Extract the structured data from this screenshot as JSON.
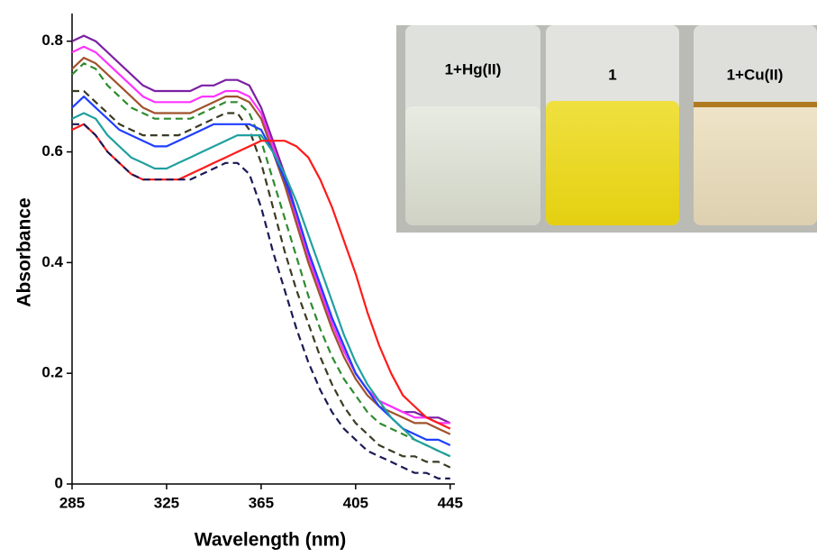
{
  "chart_data": {
    "type": "line",
    "x_label": "Wavelength (nm)",
    "y_label": "Absorbance",
    "x": [
      285,
      290,
      295,
      300,
      305,
      310,
      315,
      320,
      325,
      330,
      335,
      340,
      345,
      350,
      355,
      360,
      365,
      370,
      375,
      380,
      385,
      390,
      395,
      400,
      405,
      410,
      415,
      420,
      425,
      430,
      435,
      440,
      445
    ],
    "series": [
      {
        "color": "#7b1fa2",
        "dashed": false,
        "values": [
          0.8,
          0.81,
          0.8,
          0.78,
          0.76,
          0.74,
          0.72,
          0.71,
          0.71,
          0.71,
          0.71,
          0.72,
          0.72,
          0.73,
          0.73,
          0.72,
          0.68,
          0.62,
          0.56,
          0.49,
          0.42,
          0.36,
          0.3,
          0.25,
          0.2,
          0.17,
          0.15,
          0.14,
          0.13,
          0.13,
          0.12,
          0.12,
          0.11
        ]
      },
      {
        "color": "#ff33ff",
        "dashed": false,
        "values": [
          0.78,
          0.79,
          0.78,
          0.76,
          0.74,
          0.72,
          0.7,
          0.69,
          0.69,
          0.69,
          0.69,
          0.7,
          0.7,
          0.71,
          0.71,
          0.7,
          0.67,
          0.61,
          0.55,
          0.48,
          0.41,
          0.35,
          0.29,
          0.24,
          0.2,
          0.17,
          0.15,
          0.14,
          0.13,
          0.12,
          0.12,
          0.11,
          0.11
        ]
      },
      {
        "color": "#a0522d",
        "dashed": false,
        "values": [
          0.75,
          0.77,
          0.76,
          0.74,
          0.72,
          0.7,
          0.68,
          0.67,
          0.67,
          0.67,
          0.67,
          0.68,
          0.69,
          0.7,
          0.7,
          0.69,
          0.66,
          0.6,
          0.54,
          0.47,
          0.4,
          0.34,
          0.28,
          0.23,
          0.19,
          0.16,
          0.14,
          0.13,
          0.12,
          0.11,
          0.11,
          0.1,
          0.09
        ]
      },
      {
        "color": "#2e8b2e",
        "dashed": true,
        "values": [
          0.74,
          0.76,
          0.75,
          0.72,
          0.7,
          0.68,
          0.67,
          0.66,
          0.66,
          0.66,
          0.66,
          0.67,
          0.68,
          0.69,
          0.69,
          0.67,
          0.62,
          0.55,
          0.48,
          0.41,
          0.34,
          0.28,
          0.23,
          0.19,
          0.16,
          0.13,
          0.11,
          0.1,
          0.09,
          0.08,
          0.07,
          0.06,
          0.05
        ]
      },
      {
        "color": "#3b3b22",
        "dashed": true,
        "values": [
          0.71,
          0.71,
          0.69,
          0.67,
          0.65,
          0.64,
          0.63,
          0.63,
          0.63,
          0.63,
          0.64,
          0.65,
          0.66,
          0.67,
          0.67,
          0.64,
          0.58,
          0.5,
          0.42,
          0.35,
          0.29,
          0.23,
          0.18,
          0.14,
          0.11,
          0.09,
          0.07,
          0.06,
          0.05,
          0.05,
          0.04,
          0.04,
          0.03
        ]
      },
      {
        "color": "#1f3fff",
        "dashed": false,
        "values": [
          0.68,
          0.7,
          0.68,
          0.66,
          0.64,
          0.63,
          0.62,
          0.61,
          0.61,
          0.62,
          0.63,
          0.64,
          0.65,
          0.65,
          0.65,
          0.65,
          0.64,
          0.6,
          0.55,
          0.49,
          0.42,
          0.36,
          0.3,
          0.25,
          0.2,
          0.17,
          0.14,
          0.12,
          0.1,
          0.09,
          0.08,
          0.08,
          0.07
        ]
      },
      {
        "color": "#20a0a0",
        "dashed": false,
        "values": [
          0.66,
          0.67,
          0.66,
          0.63,
          0.61,
          0.59,
          0.58,
          0.57,
          0.57,
          0.58,
          0.59,
          0.6,
          0.61,
          0.62,
          0.63,
          0.63,
          0.63,
          0.6,
          0.56,
          0.51,
          0.45,
          0.39,
          0.33,
          0.27,
          0.22,
          0.18,
          0.15,
          0.12,
          0.1,
          0.08,
          0.07,
          0.06,
          0.05
        ]
      },
      {
        "color": "#ff1a1a",
        "dashed": false,
        "values": [
          0.64,
          0.65,
          0.63,
          0.6,
          0.58,
          0.56,
          0.55,
          0.55,
          0.55,
          0.55,
          0.56,
          0.57,
          0.58,
          0.59,
          0.6,
          0.61,
          0.62,
          0.62,
          0.62,
          0.61,
          0.59,
          0.55,
          0.5,
          0.44,
          0.38,
          0.31,
          0.25,
          0.2,
          0.16,
          0.14,
          0.12,
          0.11,
          0.1
        ]
      },
      {
        "color": "#1a1a55",
        "dashed": true,
        "values": [
          0.65,
          0.65,
          0.63,
          0.6,
          0.58,
          0.56,
          0.55,
          0.55,
          0.55,
          0.55,
          0.55,
          0.56,
          0.57,
          0.58,
          0.58,
          0.56,
          0.5,
          0.42,
          0.35,
          0.28,
          0.22,
          0.17,
          0.13,
          0.1,
          0.08,
          0.06,
          0.05,
          0.04,
          0.03,
          0.02,
          0.02,
          0.01,
          0.01
        ]
      }
    ],
    "xlim": [
      285,
      447
    ],
    "xticks": [
      285,
      325,
      365,
      405,
      445
    ],
    "ylim": [
      0,
      0.85
    ],
    "yticks": [
      0,
      0.2,
      0.4,
      0.6,
      0.8
    ],
    "annotations": [
      "1+Hg(II)",
      "1",
      "1+Cu(II)"
    ]
  }
}
